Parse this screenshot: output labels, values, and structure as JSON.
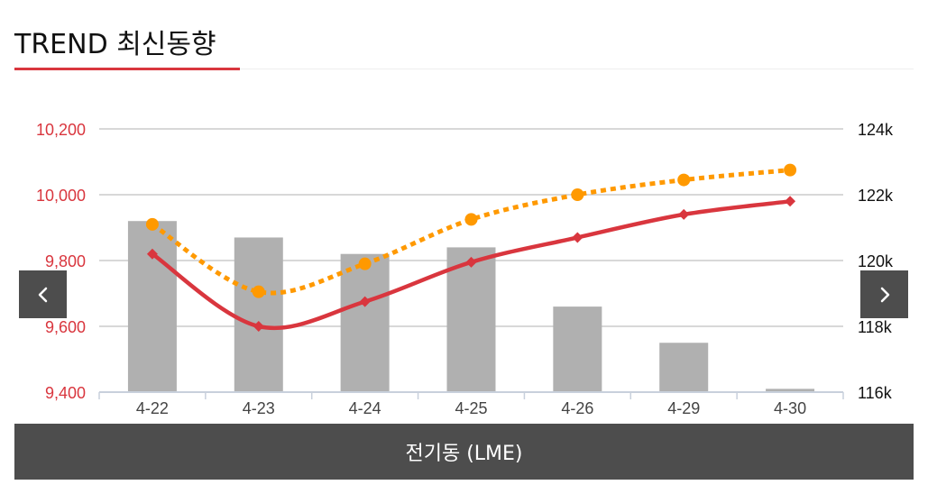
{
  "header": {
    "title": "TREND 최신동향"
  },
  "footer": {
    "label": "전기동 (LME)"
  },
  "nav": {
    "prev_icon": "chevron-left-icon",
    "next_icon": "chevron-right-icon"
  },
  "colors": {
    "accent": "#d9363e",
    "line_primary": "#d9363e",
    "line_secondary": "#ff9900",
    "bar": "#b0b0b0",
    "footer_bg": "#4d4d4d"
  },
  "chart_data": {
    "type": "bar",
    "categories": [
      "4-22",
      "4-23",
      "4-24",
      "4-25",
      "4-26",
      "4-29",
      "4-30"
    ],
    "left_axis": {
      "ticks": [
        "10,200",
        "10,000",
        "9,800",
        "9,600",
        "9,400"
      ],
      "min": 9400,
      "max": 10200
    },
    "right_axis": {
      "ticks": [
        "124k",
        "122k",
        "120k",
        "118k",
        "116k"
      ],
      "min": 116000,
      "max": 124000
    },
    "bars": {
      "axis": "right",
      "values": [
        121200,
        120700,
        120200,
        120400,
        118600,
        117500,
        116100
      ]
    },
    "lines": [
      {
        "axis": "left",
        "style": "solid",
        "marker": "diamond",
        "color": "#d9363e",
        "values": [
          9820,
          9600,
          9675,
          9795,
          9870,
          9940,
          9980
        ]
      },
      {
        "axis": "left",
        "style": "dotted",
        "marker": "circle",
        "color": "#ff9900",
        "values": [
          9910,
          9705,
          9790,
          9925,
          10000,
          10045,
          10075
        ]
      }
    ],
    "grid": true,
    "legend": "none"
  }
}
